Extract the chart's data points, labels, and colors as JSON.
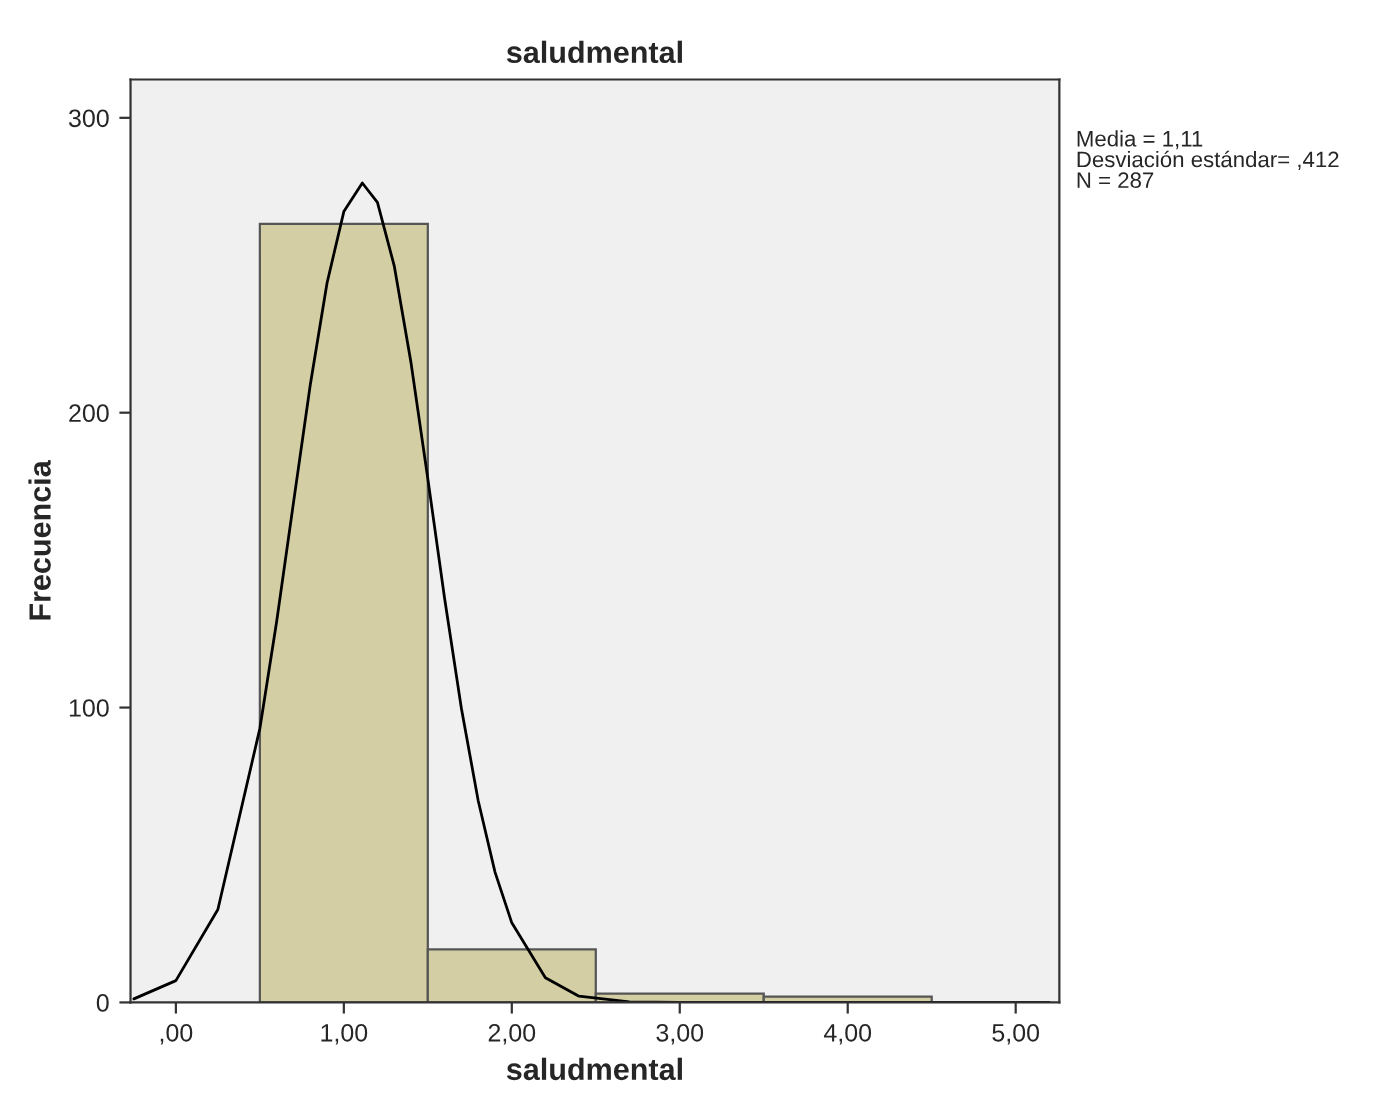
{
  "chart_data": {
    "type": "histogram",
    "title": "saludmental",
    "xlabel": "saludmental",
    "ylabel": "Frecuencia",
    "bins": [
      0.5,
      1.5,
      2.5,
      3.5,
      4.5
    ],
    "values": [
      264,
      18,
      3,
      2
    ],
    "color": "#d3cea3",
    "series": [
      {
        "type": "line",
        "color": "#000000",
        "x": [
          -0.25,
          0,
          0.25,
          0.5,
          0.6,
          0.7,
          0.8,
          0.9,
          1.0,
          1.11,
          1.2,
          1.3,
          1.4,
          1.5,
          1.6,
          1.7,
          1.8,
          1.9,
          2.0,
          2.2,
          2.4,
          2.7,
          3.0,
          4.0,
          5.2
        ],
        "values": [
          1.2,
          7.4,
          31.5,
          92.9,
          129.2,
          169.4,
          209.4,
          244,
          268.2,
          277.9,
          271.3,
          249.8,
          216.9,
          177.6,
          137,
          99.7,
          68.4,
          44.2,
          27,
          8.4,
          2.1,
          0.2,
          0,
          0,
          0
        ]
      }
    ],
    "xlim": [
      -0.27,
      5.26
    ],
    "ylim": [
      0,
      313
    ],
    "xticks": [
      {
        "value": 0,
        "label": ",00"
      },
      {
        "value": 1,
        "label": "1,00"
      },
      {
        "value": 2,
        "label": "2,00"
      },
      {
        "value": 3,
        "label": "3,00"
      },
      {
        "value": 4,
        "label": "4,00"
      },
      {
        "value": 5,
        "label": "5,00"
      }
    ],
    "yticks": [
      0,
      100,
      200,
      300
    ],
    "annotations": [
      "Media = 1,11",
      "Desviación estándar= ,412",
      "N = 287"
    ],
    "grid": false,
    "legend": false
  }
}
